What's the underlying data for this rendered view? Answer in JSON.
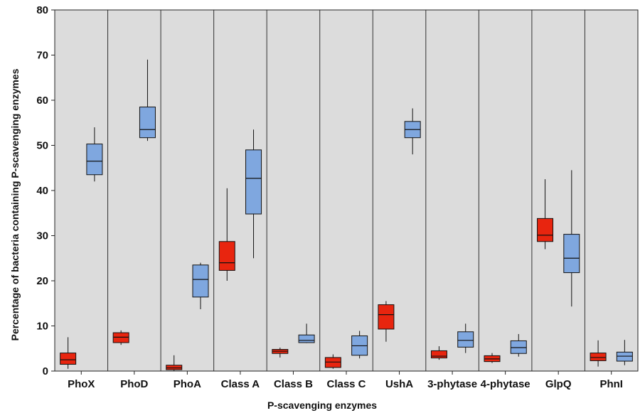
{
  "chart_data": {
    "type": "boxplot",
    "xlabel": "P-scavenging enzymes",
    "ylabel": "Percentage of bacteria containing P-scavenging enzymes",
    "ylim": [
      0,
      80
    ],
    "yticks": [
      "0",
      "10",
      "20",
      "30",
      "40",
      "50",
      "60",
      "70",
      "80"
    ],
    "background": "#dcdcdc",
    "grid": false,
    "series_colors": [
      "#e8250f",
      "#7fa7df"
    ],
    "categories": [
      "PhoX",
      "PhoD",
      "PhoA",
      "Class A",
      "Class B",
      "Class C",
      "UshA",
      "3-phytase",
      "4-phytase",
      "GlpQ",
      "PhnI"
    ],
    "series": [
      {
        "boxes": [
          {
            "min": 0.5,
            "q1": 1.5,
            "median": 2.5,
            "q3": 4,
            "max": 7.5
          },
          {
            "min": 5.8,
            "q1": 6.3,
            "median": 7.5,
            "q3": 8.5,
            "max": 9
          },
          {
            "min": 0,
            "q1": 0.3,
            "median": 0.7,
            "q3": 1.3,
            "max": 3.5
          },
          {
            "min": 20,
            "q1": 22.3,
            "median": 24,
            "q3": 28.7,
            "max": 40.5
          },
          {
            "min": 3,
            "q1": 3.9,
            "median": 4.4,
            "q3": 4.8,
            "max": 5.2
          },
          {
            "min": 0.5,
            "q1": 0.8,
            "median": 2,
            "q3": 3,
            "max": 3.7
          },
          {
            "min": 6.5,
            "q1": 9.3,
            "median": 12.5,
            "q3": 14.7,
            "max": 15.5
          },
          {
            "min": 2.5,
            "q1": 2.9,
            "median": 3.3,
            "q3": 4.5,
            "max": 5.5
          },
          {
            "min": 1.8,
            "q1": 2.1,
            "median": 2.7,
            "q3": 3.4,
            "max": 4
          },
          {
            "min": 27,
            "q1": 28.7,
            "median": 30.1,
            "q3": 33.8,
            "max": 42.5
          },
          {
            "min": 1,
            "q1": 2.3,
            "median": 3,
            "q3": 4,
            "max": 6.8
          }
        ]
      },
      {
        "boxes": [
          {
            "min": 42,
            "q1": 43.5,
            "median": 46.5,
            "q3": 50.3,
            "max": 54
          },
          {
            "min": 51,
            "q1": 51.7,
            "median": 53.5,
            "q3": 58.5,
            "max": 69
          },
          {
            "min": 13.7,
            "q1": 16.4,
            "median": 20.3,
            "q3": 23.5,
            "max": 24
          },
          {
            "min": 25,
            "q1": 34.8,
            "median": 42.7,
            "q3": 49,
            "max": 53.5
          },
          {
            "min": 6.2,
            "q1": 6.3,
            "median": 6.8,
            "q3": 8,
            "max": 10.5
          },
          {
            "min": 2.8,
            "q1": 3.5,
            "median": 5.6,
            "q3": 7.8,
            "max": 8.9
          },
          {
            "min": 48,
            "q1": 51.7,
            "median": 53.5,
            "q3": 55.3,
            "max": 58.2
          },
          {
            "min": 4,
            "q1": 5.3,
            "median": 6.8,
            "q3": 8.7,
            "max": 10.5
          },
          {
            "min": 3.2,
            "q1": 3.9,
            "median": 5.2,
            "q3": 6.7,
            "max": 8.2
          },
          {
            "min": 14.3,
            "q1": 21.8,
            "median": 25,
            "q3": 30.3,
            "max": 44.5
          },
          {
            "min": 1.3,
            "q1": 2.2,
            "median": 3.3,
            "q3": 4.2,
            "max": 6.9
          }
        ]
      }
    ]
  }
}
